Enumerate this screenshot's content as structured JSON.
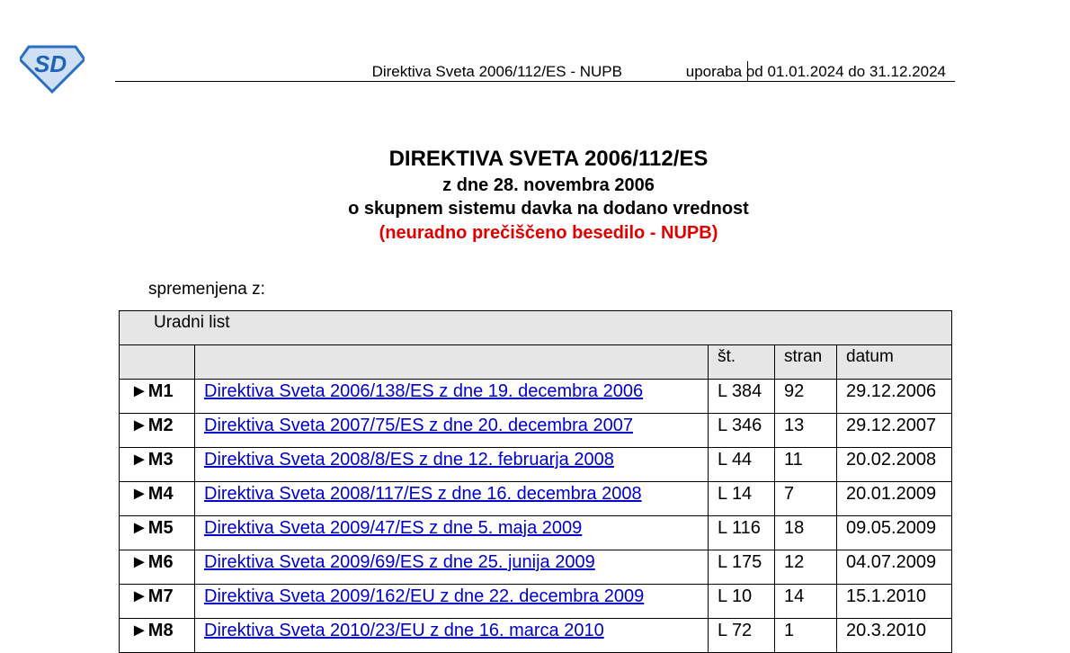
{
  "header": {
    "left": "Direktiva Sveta 2006/112/ES - NUPB",
    "right": "uporaba od 01.01.2024 do 31.12.2024",
    "logo_text": "SD"
  },
  "title": {
    "line1": "DIREKTIVA SVETA 2006/112/ES",
    "line2": "z dne 28. novembra 2006",
    "line3": "o skupnem sistemu davka na dodano vrednost",
    "line4": "(neuradno prečiščeno besedilo - NUPB)"
  },
  "amended_label": "spremenjena z:",
  "table": {
    "group_header": "Uradni list",
    "columns": [
      "",
      "",
      "št.",
      "stran",
      "datum"
    ],
    "rows": [
      {
        "marker": "►M1",
        "title": "Direktiva Sveta 2006/138/ES z dne 19. decembra 2006",
        "no": "L 384",
        "page": "92",
        "date": "29.12.2006"
      },
      {
        "marker": "►M2",
        "title": "Direktiva Sveta 2007/75/ES z dne 20. decembra 2007",
        "no": "L 346",
        "page": "13",
        "date": "29.12.2007"
      },
      {
        "marker": "►M3",
        "title": "Direktiva Sveta 2008/8/ES z dne 12. februarja 2008",
        "no": "L 44",
        "page": "11",
        "date": "20.02.2008"
      },
      {
        "marker": "►M4",
        "title": "Direktiva Sveta 2008/117/ES z dne 16. decembra 2008",
        "no": "L 14",
        "page": "7",
        "date": "20.01.2009"
      },
      {
        "marker": "►M5",
        "title": "Direktiva Sveta 2009/47/ES z dne 5. maja 2009",
        "no": "L 116",
        "page": "18",
        "date": "09.05.2009"
      },
      {
        "marker": "►M6",
        "title": "Direktiva Sveta 2009/69/ES z dne 25. junija 2009",
        "no": "L 175",
        "page": "12",
        "date": "04.07.2009"
      },
      {
        "marker": "►M7",
        "title": "Direktiva Sveta 2009/162/EU z dne 22. decembra 2009",
        "no": "L 10",
        "page": "14",
        "date": "15.1.2010"
      },
      {
        "marker": "►M8",
        "title": "Direktiva Sveta 2010/23/EU z dne 16. marca 2010",
        "no": "L 72",
        "page": "1",
        "date": "20.3.2010"
      }
    ]
  },
  "colors": {
    "link": "#0000cc",
    "red": "#e00000",
    "header_bg": "#e6e6e6"
  }
}
